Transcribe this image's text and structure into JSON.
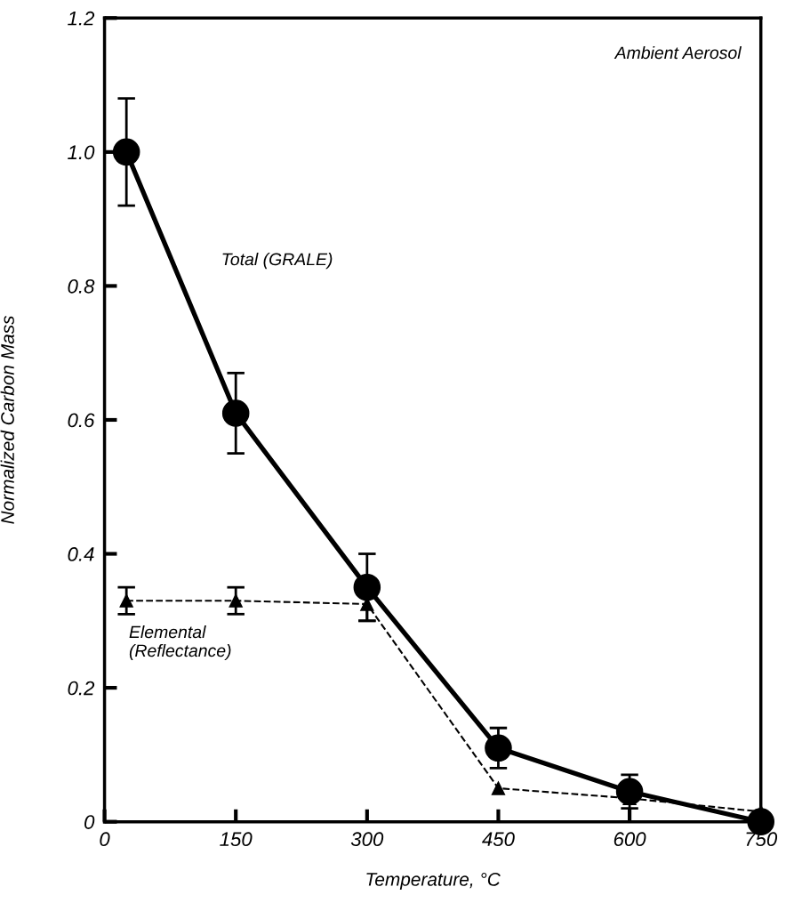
{
  "chart_data": {
    "type": "line",
    "xlabel": "Temperature, °C",
    "ylabel": "Normalized Carbon Mass",
    "x": [
      25,
      150,
      300,
      450,
      600,
      750
    ],
    "series": [
      {
        "name": "Total (GRALE)",
        "color": "#000000",
        "marker": "circle",
        "line_style": "solid",
        "values": [
          1.0,
          0.61,
          0.35,
          0.11,
          0.045,
          0.0
        ],
        "errors": [
          0.08,
          0.06,
          0.05,
          0.03,
          0.025,
          null
        ]
      },
      {
        "name": "Elemental\n(Reflectance)",
        "color": "#000000",
        "marker": "triangle",
        "line_style": "dashed",
        "values": [
          0.33,
          0.33,
          0.325,
          0.05,
          0.035,
          0.015
        ],
        "errors": [
          0.02,
          0.02,
          0.025,
          null,
          null,
          null
        ]
      }
    ],
    "annotations": [
      "Ambient Aerosol"
    ],
    "xlim": [
      0,
      750
    ],
    "xticks": [
      0,
      150,
      300,
      450,
      600,
      750
    ],
    "ylim": [
      0,
      1.2
    ],
    "yticks": [
      {
        "value": 0,
        "label": "0"
      },
      {
        "value": 0.2,
        "label": "0.2"
      },
      {
        "value": 0.4,
        "label": "0.4"
      },
      {
        "value": 0.6,
        "label": "0.6"
      },
      {
        "value": 0.8,
        "label": "0.8"
      },
      {
        "value": 1.0,
        "label": "1.0"
      },
      {
        "value": 1.2,
        "label": "1.2"
      }
    ],
    "grid": false,
    "legend": false
  }
}
